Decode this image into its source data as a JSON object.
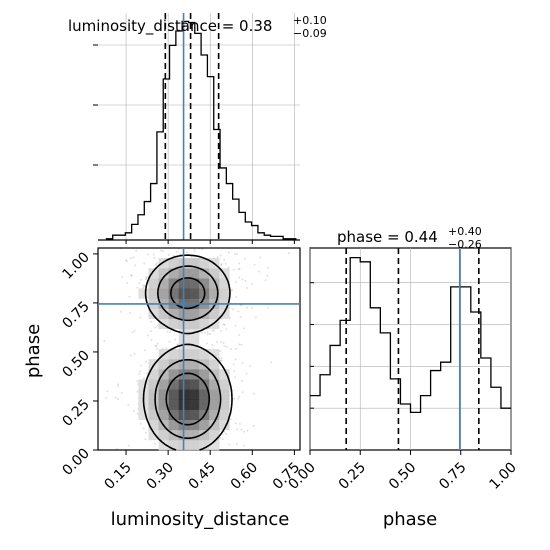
{
  "colors": {
    "truth": "#4682b4",
    "histogram": "#000000",
    "quantile": "#000000",
    "grid": "#b0b0b0",
    "density_dark": "#000000",
    "density_light": "#d0d0d0"
  },
  "chart_data": {
    "type": "corner",
    "grid": true,
    "parameters": [
      "luminosity_distance",
      "phase"
    ],
    "truths": {
      "luminosity_distance": 0.355,
      "phase": 0.745
    },
    "panels": {
      "luminosity_distance_hist": {
        "type": "histogram",
        "title_main": "luminosity_distance = 0.38",
        "title_plus": "+0.10",
        "title_minus": "−0.09",
        "xlim": [
          0.05,
          0.77
        ],
        "bin_edges": [
          0.08,
          0.1025,
          0.125,
          0.1475,
          0.17,
          0.1925,
          0.215,
          0.2375,
          0.26,
          0.2825,
          0.305,
          0.3275,
          0.35,
          0.3725,
          0.395,
          0.4175,
          0.44,
          0.4625,
          0.485,
          0.5075,
          0.53,
          0.5525,
          0.575,
          0.5975,
          0.62,
          0.6425,
          0.665,
          0.6875,
          0.71,
          0.7325,
          0.755
        ],
        "counts": [
          1,
          4,
          4,
          6,
          13,
          21,
          32,
          47,
          90,
          134,
          162,
          174,
          182,
          181,
          172,
          154,
          136,
          92,
          60,
          47,
          34,
          23,
          15,
          12,
          6,
          4,
          3,
          3,
          1,
          1
        ],
        "quantiles": [
          0.29,
          0.38,
          0.48
        ],
        "xticks": [
          0.15,
          0.3,
          0.45,
          0.6,
          0.75
        ]
      },
      "phase_hist": {
        "type": "histogram",
        "title_main": "phase = 0.44",
        "title_plus": "+0.40",
        "title_minus": "−0.26",
        "xlim": [
          0.0,
          1.0
        ],
        "bin_edges": [
          0.0,
          0.05,
          0.1,
          0.15,
          0.2,
          0.25,
          0.3,
          0.35,
          0.4,
          0.45,
          0.5,
          0.55,
          0.6,
          0.65,
          0.7,
          0.75,
          0.8,
          0.85,
          0.9,
          0.95,
          1.0
        ],
        "counts": [
          13,
          18,
          25,
          31,
          46,
          45,
          34,
          28,
          17,
          11,
          9,
          13,
          19,
          21,
          39,
          39,
          33,
          22,
          15,
          10
        ],
        "quantiles": [
          0.18,
          0.44,
          0.84
        ],
        "xticks": [
          0.0,
          0.25,
          0.5,
          0.75,
          1.0
        ],
        "xtick_labels": [
          "0.00",
          "0.25",
          "0.50",
          "0.75",
          "1.00"
        ]
      },
      "joint": {
        "type": "2d-density",
        "xlim": [
          0.05,
          0.77
        ],
        "ylim": [
          0.0,
          1.03
        ],
        "xticks": [
          0.15,
          0.3,
          0.45,
          0.6,
          0.75
        ],
        "xtick_labels": [
          "0.15",
          "0.30",
          "0.45",
          "0.60",
          "0.75"
        ],
        "yticks": [
          0.0,
          0.25,
          0.5,
          0.75,
          1.0
        ],
        "ytick_labels": [
          "0.00",
          "0.25",
          "0.50",
          "0.75",
          "1.00"
        ],
        "modes": [
          {
            "x": 0.37,
            "y": 0.26,
            "sx": 0.07,
            "sy": 0.12,
            "weight": 1.0
          },
          {
            "x": 0.37,
            "y": 0.8,
            "sx": 0.07,
            "sy": 0.09,
            "weight": 0.8
          }
        ],
        "contour_levels": [
          0.55,
          0.25,
          0.08
        ]
      }
    },
    "xlabels": [
      "luminosity_distance",
      "phase"
    ],
    "ylabel": "phase"
  }
}
